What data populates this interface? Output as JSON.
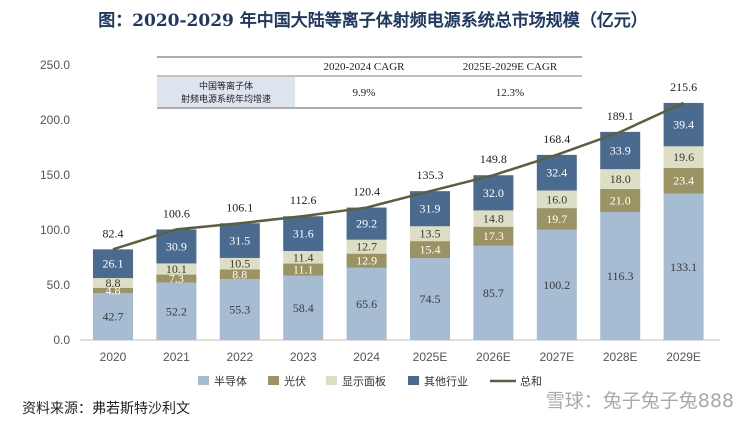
{
  "title": "图：2020-2029 年中国大陆等离子体射频电源系统总市场规模（亿元）",
  "source": "资料来源：弗若斯特沙利文",
  "watermark": "雪球：兔子兔子兔888",
  "cagr_table": {
    "row_label_line1": "中国等离子体",
    "row_label_line2": "射频电源系统年均增速",
    "col1_header": "2020-2024 CAGR",
    "col2_header": "2025E-2029E CAGR",
    "col1_value": "9.9%",
    "col2_value": "12.3%"
  },
  "colors": {
    "semiconductor": "#a6bcd3",
    "photovoltaic": "#9b9363",
    "display": "#dcdfc3",
    "other": "#4a6a8f",
    "total_line": "#5c5f3a"
  },
  "chart_data": {
    "type": "bar",
    "stacked": true,
    "title": "图：2020-2029 年中国大陆等离子体射频电源系统总市场规模（亿元）",
    "categories": [
      "2020",
      "2021",
      "2022",
      "2023",
      "2024",
      "2025E",
      "2026E",
      "2027E",
      "2028E",
      "2029E"
    ],
    "series": [
      {
        "name": "半导体",
        "key": "semiconductor",
        "values": [
          42.7,
          52.2,
          55.3,
          58.4,
          65.6,
          74.5,
          85.7,
          100.2,
          116.3,
          133.1
        ]
      },
      {
        "name": "光伏",
        "key": "photovoltaic",
        "values": [
          4.8,
          7.3,
          8.8,
          11.1,
          12.9,
          15.4,
          17.3,
          19.7,
          21.0,
          23.4
        ]
      },
      {
        "name": "显示面板",
        "key": "display",
        "values": [
          8.8,
          10.1,
          10.5,
          11.4,
          12.7,
          13.5,
          14.8,
          16.0,
          18.0,
          19.6
        ]
      },
      {
        "name": "其他行业",
        "key": "other",
        "values": [
          26.1,
          30.9,
          31.5,
          31.6,
          29.2,
          31.9,
          32.0,
          32.4,
          33.9,
          39.4
        ]
      }
    ],
    "series_labels": [
      [
        "42.7",
        "52.2",
        "55.3",
        "58.4",
        "65.6",
        "74.5",
        "85.7",
        "100.2",
        "116.3",
        "133.1"
      ],
      [
        "4.8",
        "7.3",
        "8.8",
        "11.1",
        "12.9",
        "15.4",
        "17.3",
        "19.7",
        "21.0",
        "23.4"
      ],
      [
        "8.8",
        "10.1",
        "10.5",
        "11.4",
        "12.7",
        "13.5",
        "14.8",
        "16.0",
        "18.0",
        "19.6"
      ],
      [
        "26.1",
        "30.9",
        "31.5",
        "31.6",
        "29.2",
        "31.9",
        "32.0",
        "32.4",
        "33.9",
        "39.4"
      ]
    ],
    "total_name": "总和",
    "totals": [
      82.4,
      100.6,
      106.1,
      112.6,
      120.4,
      135.3,
      149.8,
      168.4,
      189.1,
      215.6
    ],
    "total_labels": [
      "82.4",
      "100.6",
      "106.1",
      "112.6",
      "120.4",
      "135.3",
      "149.8",
      "168.4",
      "189.1",
      "215.6"
    ],
    "ylim": [
      0,
      250
    ],
    "yticks": [
      0,
      50,
      100,
      150,
      200,
      250
    ],
    "ytick_labels": [
      "0.0",
      "50.0",
      "100.0",
      "150.0",
      "200.0",
      "250.0"
    ],
    "grid": false,
    "legend_position": "bottom"
  }
}
